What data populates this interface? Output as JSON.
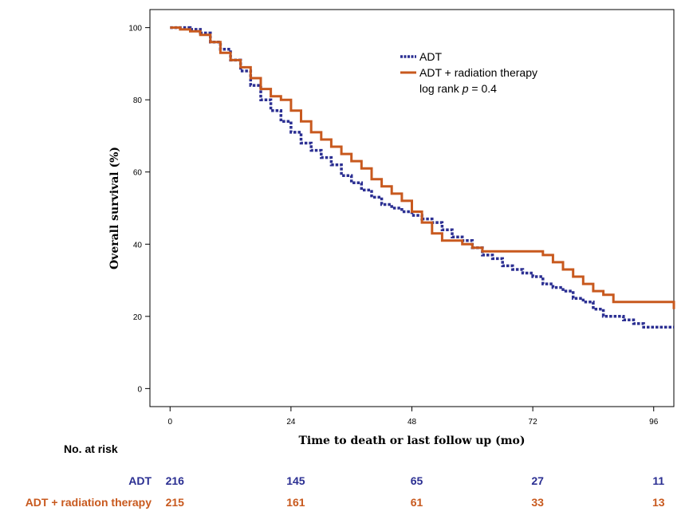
{
  "chart_data": {
    "type": "line",
    "title": "",
    "xlabel": "Time to death or last follow up (mo)",
    "ylabel": "Overall survival (%)",
    "xlim": [
      -4,
      100
    ],
    "ylim": [
      -5,
      105
    ],
    "x_ticks": [
      "0",
      "24",
      "48",
      "72",
      "96"
    ],
    "y_ticks": [
      "0",
      "20",
      "40",
      "60",
      "80",
      "100"
    ],
    "grid": false,
    "legend_position": "top-right",
    "annotation_prefix": "log rank ",
    "annotation_p": "p",
    "annotation_value": " = 0.4",
    "series": [
      {
        "name": "ADT",
        "color": "#2b2f92",
        "style": "dotted",
        "x": [
          0,
          2,
          4,
          6,
          8,
          10,
          12,
          14,
          16,
          18,
          20,
          22,
          24,
          26,
          28,
          30,
          32,
          34,
          36,
          38,
          40,
          42,
          44,
          46,
          48,
          50,
          52,
          54,
          56,
          58,
          60,
          62,
          64,
          66,
          68,
          70,
          72,
          74,
          76,
          78,
          80,
          82,
          84,
          86,
          88,
          90,
          92,
          94,
          96,
          98,
          100
        ],
        "y": [
          100,
          100,
          99.5,
          98.5,
          96,
          94,
          91,
          88,
          84,
          80,
          77,
          74,
          71,
          68,
          66,
          64,
          62,
          59,
          57,
          55,
          53,
          51,
          50,
          49,
          48,
          47,
          46,
          44,
          42,
          41,
          39,
          37,
          36,
          34,
          33,
          32,
          31,
          29,
          28,
          27,
          25,
          24,
          22,
          20,
          20,
          19,
          18,
          17,
          17,
          17,
          17
        ]
      },
      {
        "name": "ADT + radiation therapy",
        "color": "#c8591e",
        "style": "solid",
        "x": [
          0,
          2,
          4,
          6,
          8,
          10,
          12,
          14,
          16,
          18,
          20,
          22,
          24,
          26,
          28,
          30,
          32,
          34,
          36,
          38,
          40,
          42,
          44,
          46,
          48,
          50,
          52,
          54,
          56,
          58,
          60,
          62,
          64,
          66,
          68,
          70,
          72,
          74,
          76,
          78,
          80,
          82,
          84,
          86,
          88,
          90,
          92,
          94,
          96,
          98,
          100
        ],
        "y": [
          100,
          99.5,
          99,
          98,
          96,
          93,
          91,
          89,
          86,
          83,
          81,
          80,
          77,
          74,
          71,
          69,
          67,
          65,
          63,
          61,
          58,
          56,
          54,
          52,
          49,
          46,
          43,
          41,
          41,
          40,
          39,
          38,
          38,
          38,
          38,
          38,
          38,
          37,
          35,
          33,
          31,
          29,
          27,
          26,
          24,
          24,
          24,
          24,
          24,
          24,
          22
        ]
      }
    ]
  },
  "risk_table": {
    "title": "No. at risk",
    "rows": [
      {
        "label": "ADT",
        "color": "#2b2f92",
        "values": [
          "216",
          "145",
          "65",
          "27",
          "11"
        ]
      },
      {
        "label": "ADT + radiation therapy",
        "color": "#c8591e",
        "values": [
          "215",
          "161",
          "61",
          "33",
          "13"
        ]
      }
    ]
  }
}
